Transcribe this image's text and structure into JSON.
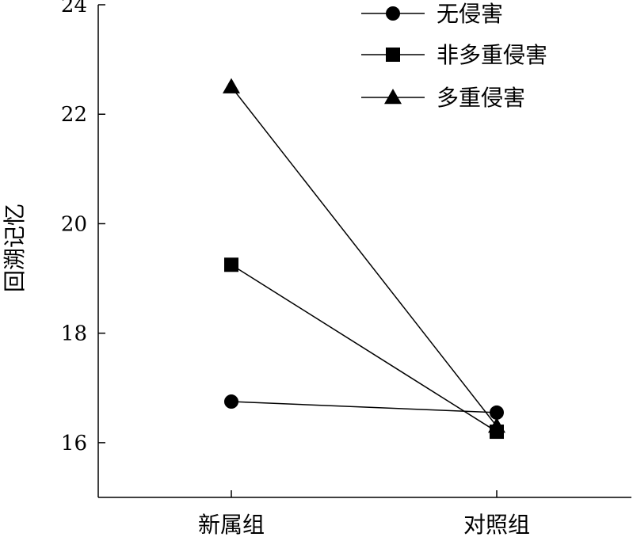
{
  "chart_data": {
    "type": "line",
    "categories": [
      "新属组",
      "对照组"
    ],
    "ylabel": "回溯记忆",
    "ylim": [
      15,
      24
    ],
    "yticks": [
      16,
      18,
      20,
      22,
      24
    ],
    "grid": false,
    "legend_position": "top-right",
    "series": [
      {
        "name": "无侵害",
        "marker": "circle",
        "values": [
          16.75,
          16.55
        ]
      },
      {
        "name": "非多重侵害",
        "marker": "square",
        "values": [
          19.25,
          16.2
        ]
      },
      {
        "name": "多重侵害",
        "marker": "triangle",
        "values": [
          22.5,
          16.3
        ]
      }
    ],
    "colors": {
      "line": "#000000",
      "marker": "#000000"
    }
  }
}
